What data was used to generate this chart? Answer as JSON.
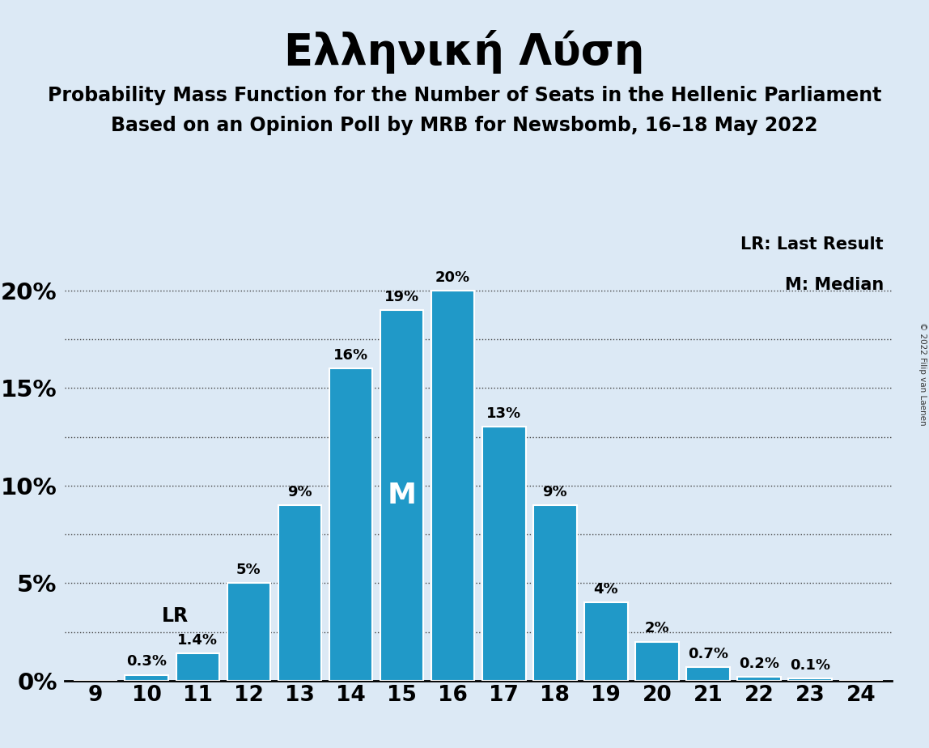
{
  "title": "Ελληνική Λύση",
  "subtitle1": "Probability Mass Function for the Number of Seats in the Hellenic Parliament",
  "subtitle2": "Based on an Opinion Poll by MRB for Newsbomb, 16–18 May 2022",
  "copyright": "© 2022 Filip van Laenen",
  "legend_lr": "LR: Last Result",
  "legend_m": "M: Median",
  "seats": [
    9,
    10,
    11,
    12,
    13,
    14,
    15,
    16,
    17,
    18,
    19,
    20,
    21,
    22,
    23,
    24
  ],
  "probabilities": [
    0.0,
    0.3,
    1.4,
    5.0,
    9.0,
    16.0,
    19.0,
    20.0,
    13.0,
    9.0,
    4.0,
    2.0,
    0.7,
    0.2,
    0.1,
    0.0
  ],
  "bar_color": "#2099C8",
  "background_color": "#dce9f5",
  "median_seat": 15,
  "lr_seat": 10,
  "title_fontsize": 38,
  "subtitle_fontsize": 17,
  "label_fontsize": 13,
  "tick_fontsize": 19,
  "ytick_labels": [
    "0%",
    "5%",
    "10%",
    "15%",
    "20%"
  ],
  "ytick_values": [
    0,
    5,
    10,
    15,
    20
  ],
  "ylim": [
    0,
    23
  ],
  "xlim": [
    8.4,
    24.6
  ]
}
